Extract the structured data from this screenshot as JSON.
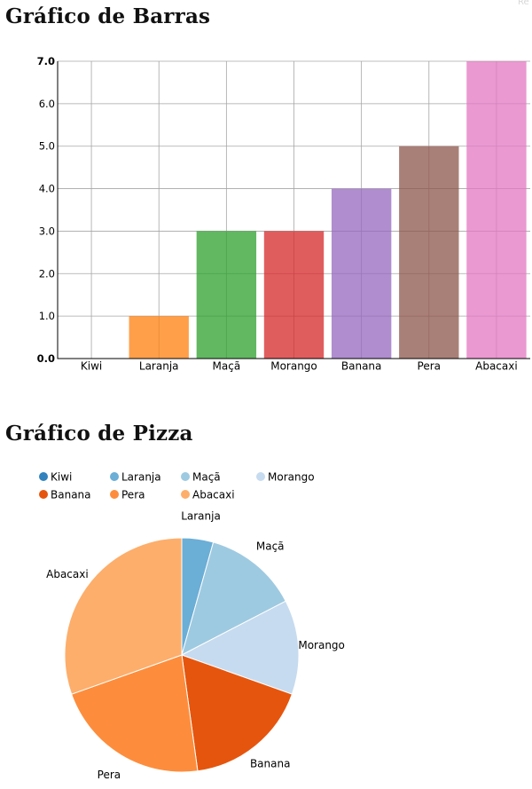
{
  "corner_tag": "Re",
  "bar_section": {
    "title": "Gráfico de Barras"
  },
  "pie_section": {
    "title": "Gráfico de Pizza"
  },
  "chart_data": [
    {
      "type": "bar",
      "title": "Gráfico de Barras",
      "categories": [
        "Kiwi",
        "Laranja",
        "Maçã",
        "Morango",
        "Banana",
        "Pera",
        "Abacaxi"
      ],
      "values": [
        0,
        1,
        3,
        3,
        4,
        5,
        7
      ],
      "colors": [
        "#1f77b4",
        "#ff7f0e",
        "#2ca02c",
        "#d62728",
        "#9467bd",
        "#8c564b",
        "#e377c2"
      ],
      "ylim": [
        0,
        7
      ],
      "yticks": [
        "0.0",
        "1.0",
        "2.0",
        "3.0",
        "4.0",
        "5.0",
        "6.0",
        "7.0"
      ],
      "grid": true,
      "xlabel": "",
      "ylabel": ""
    },
    {
      "type": "pie",
      "title": "Gráfico de Pizza",
      "categories": [
        "Kiwi",
        "Laranja",
        "Maçã",
        "Morango",
        "Banana",
        "Pera",
        "Abacaxi"
      ],
      "values": [
        0,
        1,
        3,
        3,
        4,
        5,
        7
      ],
      "colors": [
        "#3182bd",
        "#6baed6",
        "#9ecae1",
        "#c6dbef",
        "#e6550d",
        "#fd8d3c",
        "#fdae6b"
      ],
      "legend_position": "top-left"
    }
  ]
}
